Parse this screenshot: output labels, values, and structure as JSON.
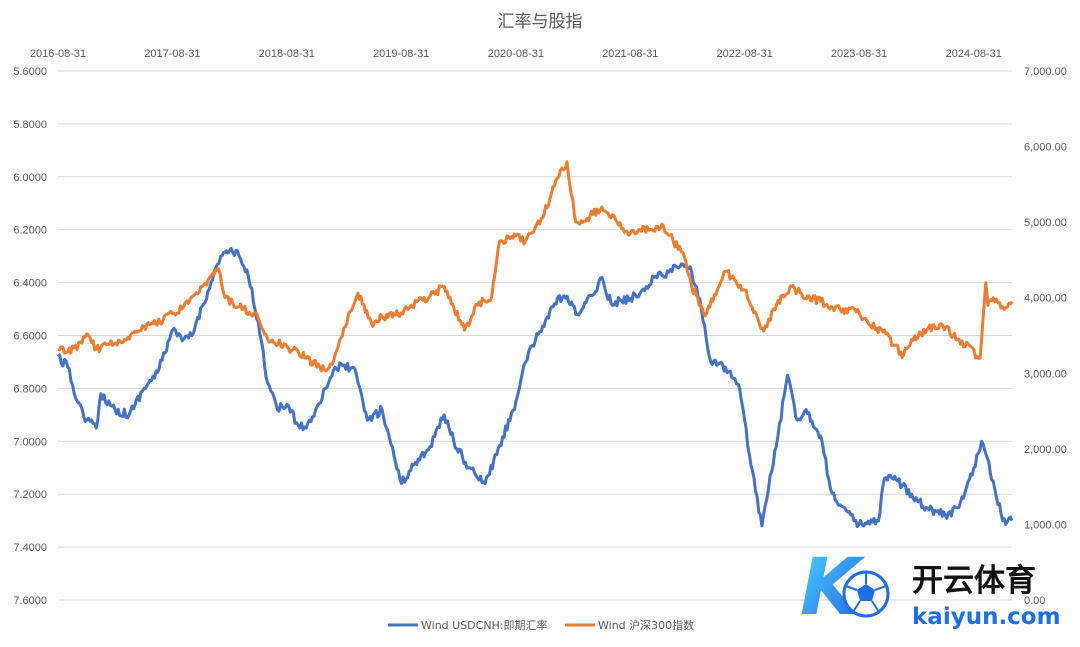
{
  "chart_data": {
    "type": "line",
    "title": "汇率与股指",
    "x_axis_position": "top",
    "x_tick_labels": [
      "2016-08-31",
      "2017-08-31",
      "2018-08-31",
      "2019-08-31",
      "2020-08-31",
      "2021-08-31",
      "2022-08-31",
      "2023-08-31",
      "2024-08-31"
    ],
    "x_range": [
      "2016-08-31",
      "2024-12-31"
    ],
    "y_left": {
      "reversed": true,
      "range": [
        5.6,
        7.6
      ],
      "tick_labels": [
        "5.6000",
        "5.8000",
        "6.0000",
        "6.2000",
        "6.4000",
        "6.6000",
        "6.8000",
        "7.0000",
        "7.2000",
        "7.4000",
        "7.6000"
      ]
    },
    "y_right": {
      "range": [
        0,
        7000
      ],
      "tick_labels": [
        "0.00",
        "1,000.00",
        "2,000.00",
        "3,000.00",
        "4,000.00",
        "5,000.00",
        "6,000.00",
        "7,000.00"
      ]
    },
    "grid": true,
    "legend_position": "bottom",
    "series": [
      {
        "name": "Wind USDCNH:即期汇率",
        "axis": "left",
        "color": "#4472c4",
        "points": [
          [
            "2016-08-31",
            6.68
          ],
          [
            "2016-10-01",
            6.72
          ],
          [
            "2016-11-01",
            6.85
          ],
          [
            "2016-12-01",
            6.92
          ],
          [
            "2016-12-31",
            6.95
          ],
          [
            "2017-01-15",
            6.82
          ],
          [
            "2017-03-01",
            6.88
          ],
          [
            "2017-04-15",
            6.9
          ],
          [
            "2017-06-01",
            6.8
          ],
          [
            "2017-07-15",
            6.74
          ],
          [
            "2017-08-31",
            6.58
          ],
          [
            "2017-10-01",
            6.62
          ],
          [
            "2017-11-01",
            6.6
          ],
          [
            "2018-01-01",
            6.4
          ],
          [
            "2018-02-01",
            6.3
          ],
          [
            "2018-03-01",
            6.28
          ],
          [
            "2018-04-01",
            6.3
          ],
          [
            "2018-05-01",
            6.38
          ],
          [
            "2018-06-01",
            6.55
          ],
          [
            "2018-07-01",
            6.78
          ],
          [
            "2018-08-01",
            6.88
          ],
          [
            "2018-09-01",
            6.86
          ],
          [
            "2018-10-01",
            6.93
          ],
          [
            "2018-11-01",
            6.95
          ],
          [
            "2018-12-01",
            6.88
          ],
          [
            "2019-01-01",
            6.8
          ],
          [
            "2019-02-01",
            6.72
          ],
          [
            "2019-04-01",
            6.72
          ],
          [
            "2019-05-15",
            6.92
          ],
          [
            "2019-07-01",
            6.88
          ],
          [
            "2019-09-01",
            7.16
          ],
          [
            "2019-10-15",
            7.08
          ],
          [
            "2019-12-01",
            7.02
          ],
          [
            "2020-01-15",
            6.9
          ],
          [
            "2020-02-15",
            7.0
          ],
          [
            "2020-04-01",
            7.1
          ],
          [
            "2020-05-25",
            7.16
          ],
          [
            "2020-07-01",
            7.05
          ],
          [
            "2020-08-31",
            6.85
          ],
          [
            "2020-10-01",
            6.7
          ],
          [
            "2020-11-01",
            6.62
          ],
          [
            "2021-01-01",
            6.48
          ],
          [
            "2021-02-01",
            6.45
          ],
          [
            "2021-03-15",
            6.52
          ],
          [
            "2021-05-01",
            6.45
          ],
          [
            "2021-06-01",
            6.38
          ],
          [
            "2021-07-01",
            6.48
          ],
          [
            "2021-08-31",
            6.46
          ],
          [
            "2021-10-01",
            6.44
          ],
          [
            "2021-11-15",
            6.38
          ],
          [
            "2022-01-01",
            6.36
          ],
          [
            "2022-02-15",
            6.33
          ],
          [
            "2022-03-15",
            6.36
          ],
          [
            "2022-04-15",
            6.5
          ],
          [
            "2022-05-15",
            6.7
          ],
          [
            "2022-07-01",
            6.72
          ],
          [
            "2022-08-15",
            6.8
          ],
          [
            "2022-09-15",
            7.05
          ],
          [
            "2022-10-25",
            7.32
          ],
          [
            "2022-11-15",
            7.18
          ],
          [
            "2022-12-15",
            6.98
          ],
          [
            "2023-01-15",
            6.75
          ],
          [
            "2023-02-15",
            6.92
          ],
          [
            "2023-03-15",
            6.88
          ],
          [
            "2023-05-01",
            6.98
          ],
          [
            "2023-06-01",
            7.18
          ],
          [
            "2023-07-01",
            7.24
          ],
          [
            "2023-08-15",
            7.3
          ],
          [
            "2023-09-15",
            7.32
          ],
          [
            "2023-11-01",
            7.3
          ],
          [
            "2023-11-20",
            7.14
          ],
          [
            "2024-01-01",
            7.15
          ],
          [
            "2024-02-15",
            7.2
          ],
          [
            "2024-04-01",
            7.25
          ],
          [
            "2024-06-01",
            7.28
          ],
          [
            "2024-07-15",
            7.25
          ],
          [
            "2024-08-31",
            7.1
          ],
          [
            "2024-09-25",
            7.0
          ],
          [
            "2024-11-01",
            7.15
          ],
          [
            "2024-12-01",
            7.3
          ],
          [
            "2024-12-31",
            7.3
          ]
        ]
      },
      {
        "name": "Wind 沪深300指数",
        "axis": "right",
        "color": "#ed7d31",
        "points": [
          [
            "2016-08-31",
            3320
          ],
          [
            "2016-10-01",
            3280
          ],
          [
            "2016-11-15",
            3400
          ],
          [
            "2016-12-01",
            3520
          ],
          [
            "2016-12-31",
            3320
          ],
          [
            "2017-02-01",
            3380
          ],
          [
            "2017-04-01",
            3450
          ],
          [
            "2017-06-01",
            3620
          ],
          [
            "2017-08-01",
            3700
          ],
          [
            "2017-08-31",
            3790
          ],
          [
            "2017-10-01",
            3850
          ],
          [
            "2017-11-20",
            4050
          ],
          [
            "2018-01-25",
            4380
          ],
          [
            "2018-02-15",
            4000
          ],
          [
            "2018-04-01",
            3880
          ],
          [
            "2018-06-01",
            3730
          ],
          [
            "2018-07-01",
            3450
          ],
          [
            "2018-09-01",
            3350
          ],
          [
            "2018-11-01",
            3200
          ],
          [
            "2019-01-03",
            3030
          ],
          [
            "2019-02-01",
            3240
          ],
          [
            "2019-03-01",
            3600
          ],
          [
            "2019-04-15",
            4060
          ],
          [
            "2019-06-01",
            3620
          ],
          [
            "2019-07-01",
            3750
          ],
          [
            "2019-08-31",
            3800
          ],
          [
            "2019-10-01",
            3900
          ],
          [
            "2019-12-01",
            4020
          ],
          [
            "2020-01-15",
            4150
          ],
          [
            "2020-03-20",
            3570
          ],
          [
            "2020-05-01",
            3900
          ],
          [
            "2020-06-15",
            4020
          ],
          [
            "2020-07-10",
            4750
          ],
          [
            "2020-08-31",
            4820
          ],
          [
            "2020-10-01",
            4750
          ],
          [
            "2020-11-20",
            5050
          ],
          [
            "2021-01-15",
            5600
          ],
          [
            "2021-02-10",
            5800
          ],
          [
            "2021-03-10",
            5000
          ],
          [
            "2021-04-15",
            5050
          ],
          [
            "2021-06-01",
            5200
          ],
          [
            "2021-07-20",
            5000
          ],
          [
            "2021-08-31",
            4850
          ],
          [
            "2021-10-01",
            4900
          ],
          [
            "2021-12-15",
            4950
          ],
          [
            "2022-01-15",
            4750
          ],
          [
            "2022-02-15",
            4600
          ],
          [
            "2022-03-15",
            4150
          ],
          [
            "2022-04-27",
            3760
          ],
          [
            "2022-06-15",
            4200
          ],
          [
            "2022-07-01",
            4350
          ],
          [
            "2022-08-31",
            4100
          ],
          [
            "2022-10-31",
            3560
          ],
          [
            "2022-12-01",
            3850
          ],
          [
            "2023-01-28",
            4150
          ],
          [
            "2023-03-01",
            4050
          ],
          [
            "2023-05-01",
            3950
          ],
          [
            "2023-07-01",
            3850
          ],
          [
            "2023-08-31",
            3800
          ],
          [
            "2023-10-01",
            3650
          ],
          [
            "2023-11-15",
            3550
          ],
          [
            "2024-01-20",
            3240
          ],
          [
            "2024-02-15",
            3450
          ],
          [
            "2024-03-15",
            3530
          ],
          [
            "2024-05-15",
            3650
          ],
          [
            "2024-07-15",
            3450
          ],
          [
            "2024-09-20",
            3200
          ],
          [
            "2024-10-08",
            4200
          ],
          [
            "2024-10-15",
            3900
          ],
          [
            "2024-11-01",
            4000
          ],
          [
            "2024-12-01",
            3880
          ],
          [
            "2024-12-31",
            3950
          ]
        ]
      }
    ]
  },
  "watermark": {
    "logo_letter": "K",
    "brand_cn": "开云体育",
    "brand_en": "kaiyun.com"
  }
}
